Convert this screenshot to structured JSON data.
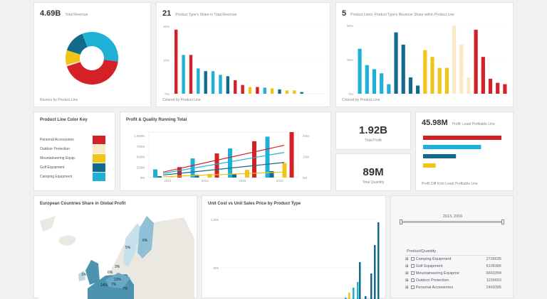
{
  "colors": {
    "personal": "#d42027",
    "outdoor": "#fbe8c4",
    "mountain": "#f0c419",
    "golf": "#146a8c",
    "camping": "#1fb0d6"
  },
  "revenue": {
    "value": "4.69B",
    "label": "Total Revenue",
    "footer": "Revenu by Product Line",
    "chart_data": {
      "type": "pie",
      "slices": [
        {
          "line": "Camping Equipment",
          "value": 33,
          "color": "#1fb0d6"
        },
        {
          "line": "Personal Accessories",
          "value": 43,
          "color": "#d42027"
        },
        {
          "line": "Outdoor Protection",
          "value": 1,
          "color": "#fbe8c4"
        },
        {
          "line": "Mountaineering Equipment",
          "value": 9,
          "color": "#f0c419"
        },
        {
          "line": "Golf Equipment",
          "value": 14,
          "color": "#146a8c"
        }
      ]
    }
  },
  "types": {
    "value": "21",
    "label": "Product Type's Share in Total Revenue",
    "footer": "Colored by Product Line",
    "chart_data": {
      "type": "bar",
      "yticks": [
        "20%",
        "10%",
        "0%"
      ],
      "ylim": [
        0,
        20
      ],
      "values": [
        19,
        11.5,
        11.5,
        7.5,
        6.7,
        6.7,
        5.6,
        5.2,
        4,
        2.6,
        2,
        2,
        1.8,
        1.6,
        1.3,
        1,
        1,
        0.5,
        0.1,
        0.1,
        0.1
      ],
      "colors": [
        "#d42027",
        "#1fb0d6",
        "#d42027",
        "#1fb0d6",
        "#146a8c",
        "#1fb0d6",
        "#1fb0d6",
        "#146a8c",
        "#d42027",
        "#d42027",
        "#f0c419",
        "#d42027",
        "#1fb0d6",
        "#f0c419",
        "#146a8c",
        "#f0c419",
        "#f0c419",
        "#146a8c",
        "#fbe8c4",
        "#fbe8c4",
        "#fbe8c4"
      ]
    }
  },
  "lines": {
    "value": "5",
    "label": "Product Lines: Product Type's Revenue Share within Product Line",
    "footer": "Colored by Product Line",
    "chart_data": {
      "type": "bar",
      "yticks": [
        "50%",
        "25%",
        "0%"
      ],
      "ylim": [
        0,
        50
      ],
      "values": [
        33,
        21,
        18,
        15,
        7,
        45,
        36,
        12,
        6,
        32,
        27,
        19,
        19,
        50,
        36,
        12,
        47,
        27,
        11,
        8,
        7
      ],
      "colors": [
        "#1fb0d6",
        "#1fb0d6",
        "#1fb0d6",
        "#1fb0d6",
        "#1fb0d6",
        "#146a8c",
        "#146a8c",
        "#146a8c",
        "#146a8c",
        "#f0c419",
        "#f0c419",
        "#f0c419",
        "#f0c419",
        "#fbe8c4",
        "#fbe8c4",
        "#fbe8c4",
        "#d42027",
        "#d42027",
        "#d42027",
        "#d42027",
        "#d42027"
      ]
    }
  },
  "key": {
    "title": "Product Line Color Key",
    "items": [
      {
        "label": "Personal Accessories",
        "color": "#d42027"
      },
      {
        "label": "Outdoor Protection",
        "color": "#fbe8c4"
      },
      {
        "label": "Mountaineering Equip.",
        "color": "#f0c419"
      },
      {
        "label": "Golf Equipment",
        "color": "#146a8c"
      },
      {
        "label": "Camping Equipment",
        "color": "#1fb0d6"
      }
    ]
  },
  "running": {
    "title": "Profit & Quality Running Total",
    "chart_data": {
      "type": "bar",
      "categories": [
        "2013",
        "2014",
        "2015",
        "2016"
      ],
      "yticks_left": [
        "1,000M",
        "750M",
        "500M",
        "250M",
        "0M"
      ],
      "yticks_right": [
        "30M",
        "15M",
        "0M"
      ],
      "ylim": [
        0,
        1000
      ],
      "series": [
        {
          "color": "#1fb0d6",
          "values": [
            180,
            420,
            640,
            900
          ]
        },
        {
          "color": "#146a8c",
          "values": [
            30,
            60,
            80,
            140
          ]
        },
        {
          "color": "#f0c419",
          "values": [
            10,
            80,
            170,
            320
          ]
        },
        {
          "color": "#d42027",
          "values": [
            230,
            530,
            800,
            1150
          ]
        }
      ],
      "trend": [
        {
          "color": "#d42027",
          "values": [
            130,
            770
          ]
        },
        {
          "color": "#1fb0d6",
          "values": [
            100,
            600
          ]
        },
        {
          "color": "#146a8c",
          "values": [
            60,
            360
          ]
        },
        {
          "color": "#f0c419",
          "values": [
            20,
            130
          ]
        }
      ]
    }
  },
  "profit": {
    "value": "1.92B",
    "label": "Total Profit"
  },
  "quantity": {
    "value": "89M",
    "label": "Total Quantity"
  },
  "least": {
    "value": "45.98M",
    "label": "Profit: Least Profitable Line",
    "footer": "Profit Diff from Least Profitable Line",
    "chart_data": {
      "type": "bar",
      "values": [
        100,
        74,
        42,
        16
      ],
      "colors": [
        "#d42027",
        "#1fb0d6",
        "#146a8c",
        "#f0c419"
      ]
    }
  },
  "map": {
    "title": "European Countries Share in Global Profit",
    "labels": [
      "6%",
      "5%",
      "3%",
      "1%",
      "6%",
      "13%",
      "14%",
      "7%",
      "7%"
    ]
  },
  "unit": {
    "title": "Unit Cost vs Unit Sales Price by Product Type",
    "yticks": [
      "1,200",
      "600"
    ],
    "chart_data": {
      "type": "bar",
      "values": [
        5,
        22,
        40,
        60,
        130,
        10,
        90,
        190,
        270
      ],
      "colors": [
        "#1fb0d6",
        "#f0c419",
        "#1fb0d6",
        "#1fb0d6",
        "#146a8c",
        "#146a8c",
        "#146a8c",
        "#146a8c",
        "#146a8c"
      ]
    }
  },
  "filter": {
    "range": "2013, 2016",
    "tree_header": "Product/Quantity",
    "rows": [
      {
        "label": "Camping Equipment",
        "qty": "2728035"
      },
      {
        "label": "Golf Equipment",
        "qty": "6108386"
      },
      {
        "label": "Mountaineering Equipme",
        "qty": "6660394"
      },
      {
        "label": "Outdoor Protection",
        "qty": "1209653"
      },
      {
        "label": "Personal Accessories",
        "qty": "2469395"
      }
    ]
  }
}
